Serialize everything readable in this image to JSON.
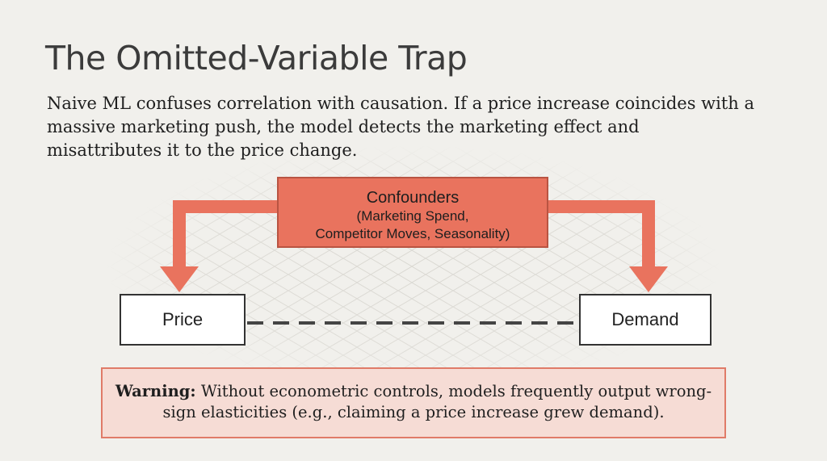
{
  "title": "The Omitted-Variable Trap",
  "intro": "Naive ML confuses correlation with causation. If a price increase coincides with a massive marketing push, the model detects the marketing effect and misattributes it to the price change.",
  "diagram": {
    "confounder_title": "Confounders",
    "confounder_line1": "(Marketing Spend,",
    "confounder_line2": "Competitor Moves, Seasonality)",
    "price_label": "Price",
    "demand_label": "Demand"
  },
  "warning": {
    "label": "Warning:",
    "text": "Without econometric controls, models frequently output wrong-sign elasticities (e.g., claiming a price increase grew demand)."
  },
  "colors": {
    "accent": "#e9735e",
    "background": "#f1f0ec",
    "warning_bg": "#f6dcd5"
  }
}
